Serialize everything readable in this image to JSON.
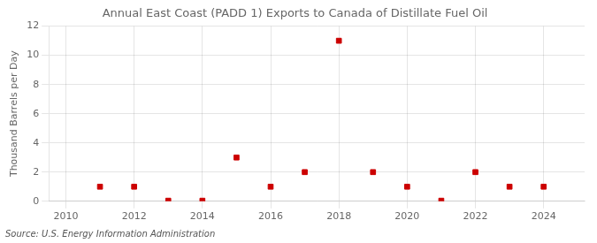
{
  "chart_data": {
    "type": "scatter",
    "title": "Annual East Coast (PADD 1) Exports to Canada of Distillate Fuel Oil",
    "ylabel": "Thousand Barrels per Day",
    "source": "Source: U.S. Energy Information Administration",
    "x": [
      2010,
      2011,
      2012,
      2013,
      2014,
      2015,
      2016,
      2017,
      2018,
      2019,
      2020,
      2021,
      2022,
      2023,
      2024
    ],
    "values": [
      null,
      1.0,
      1.0,
      0.04,
      0.04,
      3.0,
      1.0,
      2.0,
      11.0,
      2.0,
      1.0,
      0.04,
      2.0,
      1.0,
      1.0
    ],
    "xlim": [
      2009.5,
      2025.2
    ],
    "xticks": [
      2010,
      2012,
      2014,
      2016,
      2018,
      2020,
      2022,
      2024
    ],
    "ylim": [
      0,
      12
    ],
    "yticks": [
      0,
      2,
      4,
      6,
      8,
      10,
      12
    ],
    "color": "#cc0000",
    "marker": "square",
    "grid": true
  }
}
